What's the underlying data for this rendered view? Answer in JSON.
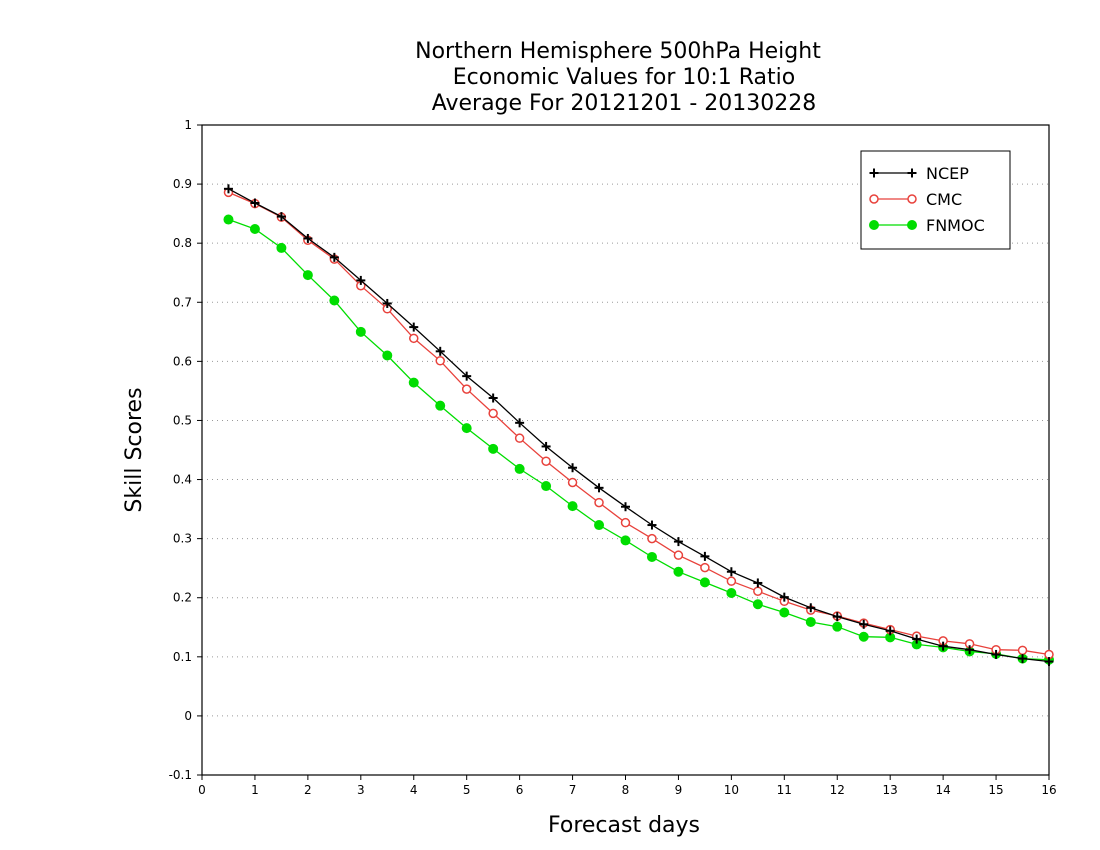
{
  "chart_data": {
    "type": "line",
    "title": [
      "Northern Hemisphere 500hPa Height",
      "Economic Values for 10:1 Ratio",
      "Average For 20121201 - 20130228"
    ],
    "xlabel": "Forecast days",
    "ylabel": "Skill Scores",
    "xlim": [
      0,
      16
    ],
    "ylim": [
      -0.1,
      1
    ],
    "xticks": [
      0,
      1,
      2,
      3,
      4,
      5,
      6,
      7,
      8,
      9,
      10,
      11,
      12,
      13,
      14,
      15,
      16
    ],
    "yticks": [
      -0.1,
      0,
      0.1,
      0.2,
      0.3,
      0.4,
      0.5,
      0.6,
      0.7,
      0.8,
      0.9,
      1
    ],
    "ytick_labels": [
      "-0.1",
      "0",
      "0.1",
      "0.2",
      "0.3",
      "0.4",
      "0.5",
      "0.6",
      "0.7",
      "0.8",
      "0.9",
      "1"
    ],
    "grid": "horizontal dotted",
    "legend_position": "top-right",
    "x": [
      0.5,
      1,
      1.5,
      2,
      2.5,
      3,
      3.5,
      4,
      4.5,
      5,
      5.5,
      6,
      6.5,
      7,
      7.5,
      8,
      8.5,
      9,
      9.5,
      10,
      10.5,
      11,
      11.5,
      12,
      12.5,
      13,
      13.5,
      14,
      14.5,
      15,
      15.5,
      16
    ],
    "series": [
      {
        "name": "NCEP",
        "color": "#000000",
        "marker": "plus",
        "values": [
          0.892,
          0.868,
          0.845,
          0.808,
          0.776,
          0.737,
          0.698,
          0.658,
          0.617,
          0.575,
          0.538,
          0.496,
          0.456,
          0.42,
          0.386,
          0.354,
          0.323,
          0.295,
          0.27,
          0.244,
          0.225,
          0.201,
          0.183,
          0.168,
          0.155,
          0.144,
          0.13,
          0.118,
          0.112,
          0.104,
          0.097,
          0.092
        ]
      },
      {
        "name": "CMC",
        "color": "#e8423c",
        "marker": "open-circle",
        "values": [
          0.886,
          0.867,
          0.844,
          0.805,
          0.773,
          0.728,
          0.689,
          0.639,
          0.601,
          0.553,
          0.512,
          0.47,
          0.431,
          0.395,
          0.361,
          0.327,
          0.3,
          0.272,
          0.251,
          0.228,
          0.211,
          0.194,
          0.179,
          0.169,
          0.157,
          0.146,
          0.135,
          0.127,
          0.122,
          0.112,
          0.111,
          0.104
        ]
      },
      {
        "name": "FNMOC",
        "color": "#00dd00",
        "marker": "filled-circle",
        "values": [
          0.84,
          0.824,
          0.792,
          0.746,
          0.703,
          0.65,
          0.61,
          0.564,
          0.525,
          0.487,
          0.452,
          0.418,
          0.389,
          0.355,
          0.323,
          0.297,
          0.269,
          0.244,
          0.226,
          0.208,
          0.189,
          0.175,
          0.159,
          0.151,
          0.134,
          0.133,
          0.121,
          0.116,
          0.109,
          0.105,
          0.097,
          0.095
        ]
      }
    ]
  }
}
